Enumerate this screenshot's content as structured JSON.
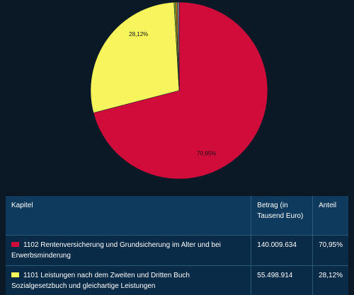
{
  "chart_data": {
    "type": "pie",
    "values": [
      70.95,
      28.12,
      0.35,
      0.25,
      0.33
    ],
    "value_labels": [
      "70,95%",
      "28,12%",
      null,
      null,
      null
    ],
    "colors": [
      "#d00c3b",
      "#f6f65c",
      "#7f9e2c",
      "#e38b0a",
      "#7c8288"
    ]
  },
  "table": {
    "header": [
      "Kapitel",
      "Betrag (in Tausend Euro)",
      "Anteil"
    ],
    "rows": [
      [
        "1102 Rentenversicherung und Grundsicherung im Alter und bei Erwerbsminderung",
        "140.009.634",
        "70,95%"
      ],
      [
        "1101 Leistungen nach dem Zweiten und Dritten Buch Sozialgesetzbuch und gleichartige Leistungen",
        "55.498.914",
        "28,12%"
      ]
    ]
  }
}
